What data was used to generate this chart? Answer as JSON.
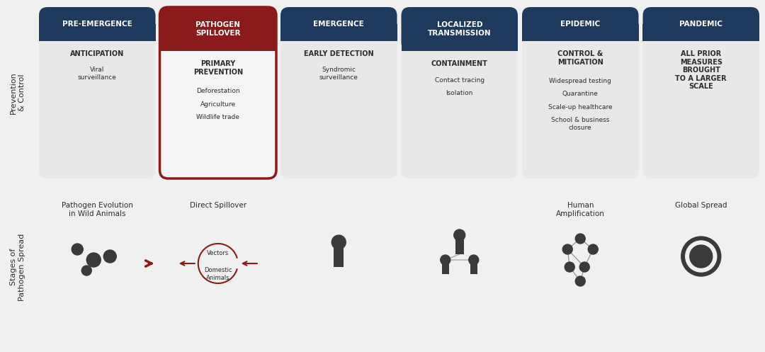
{
  "bg_color": "#f0f0f0",
  "phases": [
    {
      "title": "PRE-EMERGENCE",
      "header_bg": "#1f3a5f",
      "header_text_color": "#ffffff",
      "body_bg": "#e8e8e8",
      "border_color": "#1f3a5f",
      "bold_label": "ANTICIPATION",
      "items": [
        "Viral\nsurveillance"
      ],
      "stage_label": "Pathogen Evolution\nin Wild Animals",
      "spillover": false
    },
    {
      "title": "PATHOGEN\nSPILLOVER",
      "header_bg": "#8b1a1a",
      "header_text_color": "#ffffff",
      "body_bg": "#f5f5f5",
      "border_color": "#8b1a1a",
      "bold_label": "PRIMARY\nPREVENTION",
      "items": [
        "Deforestation",
        "Agriculture",
        "Wildlife trade"
      ],
      "stage_label": "Direct Spillover",
      "spillover": true
    },
    {
      "title": "EMERGENCE",
      "header_bg": "#1f3a5f",
      "header_text_color": "#ffffff",
      "body_bg": "#e8e8e8",
      "border_color": "#1f3a5f",
      "bold_label": "EARLY DETECTION",
      "items": [
        "Syndromic\nsurveillance"
      ],
      "stage_label": "",
      "spillover": false
    },
    {
      "title": "LOCALIZED\nTRANSMISSION",
      "header_bg": "#1f3a5f",
      "header_text_color": "#ffffff",
      "body_bg": "#e8e8e8",
      "border_color": "#1f3a5f",
      "bold_label": "CONTAINMENT",
      "items": [
        "Contact tracing",
        "Isolation"
      ],
      "stage_label": "",
      "spillover": false
    },
    {
      "title": "EPIDEMIC",
      "header_bg": "#1f3a5f",
      "header_text_color": "#ffffff",
      "body_bg": "#e8e8e8",
      "border_color": "#1f3a5f",
      "bold_label": "CONTROL &\nMITIGATION",
      "items": [
        "Widespread testing",
        "Quarantine",
        "Scale-up healthcare",
        "School & business\nclosure"
      ],
      "stage_label": "Human\nAmplification",
      "spillover": false
    },
    {
      "title": "PANDEMIC",
      "header_bg": "#1f3a5f",
      "header_text_color": "#ffffff",
      "body_bg": "#e8e8e8",
      "border_color": "#1f3a5f",
      "bold_label": "ALL PRIOR\nMEASURES\nBROUGHT\nTO A LARGER\nSCALE",
      "items": [],
      "stage_label": "Global Spread",
      "spillover": false
    }
  ],
  "left_label_top": "Prevention\n& Control",
  "left_label_bottom": "Stages of\nPathogen Spread",
  "dark_blue": "#1f3a5f",
  "dark_red": "#8b1a1a",
  "light_red_bg": "#f5e8e8",
  "light_gray_bg": "#e8e8e8",
  "text_dark": "#2c2c2c",
  "text_medium": "#444444"
}
